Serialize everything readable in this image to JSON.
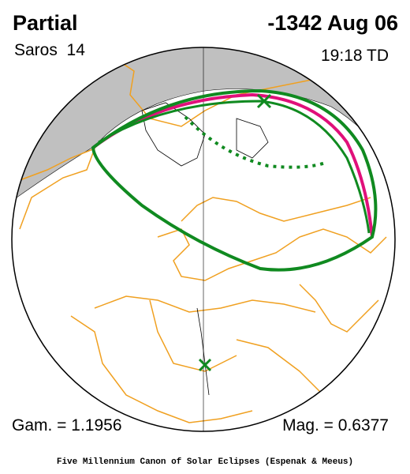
{
  "header": {
    "title": "Partial",
    "date": "-1342 Aug 06",
    "saros": "Saros  14",
    "time": "19:18 TD"
  },
  "parameters": {
    "gamma": "Gam. = 1.1956",
    "magnitude": "Mag. = 0.6377"
  },
  "footer": "Five Millennium Canon of Solar Eclipses (Espenak & Meeus)"
}
